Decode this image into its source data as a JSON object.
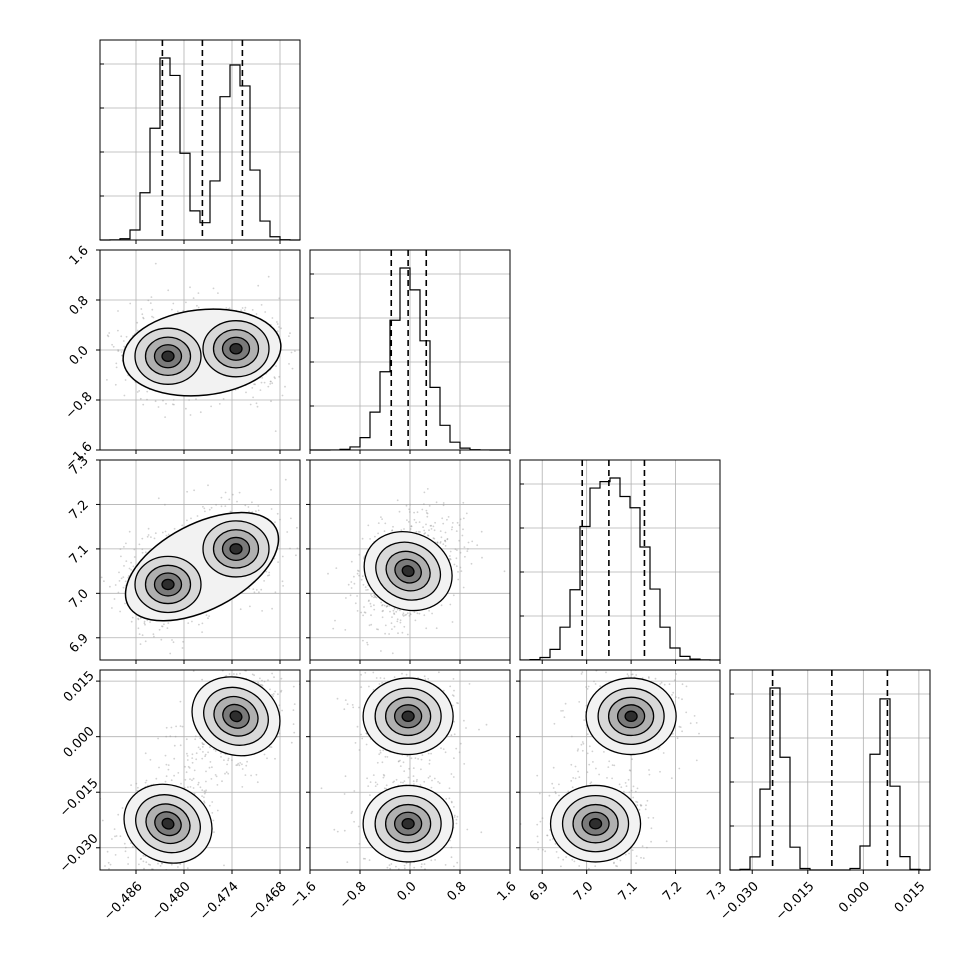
{
  "chart_data": {
    "type": "corner",
    "grid": true,
    "colors": {
      "line": "#000000",
      "grid": "#b0b0b0",
      "points": "#9a9a9a"
    },
    "parameters": [
      {
        "id": "p0",
        "ticks": [
          -0.486,
          -0.48,
          -0.474,
          -0.468
        ],
        "tick_labels": [
          "−0.486",
          "−0.480",
          "−0.474",
          "−0.468"
        ],
        "range": [
          -0.4905,
          -0.4655
        ],
        "quantiles": [
          -0.4827,
          -0.4777,
          -0.4727
        ],
        "modes": [
          {
            "mean": -0.482,
            "sd": 0.0017,
            "w": 0.5
          },
          {
            "mean": -0.4735,
            "sd": 0.0017,
            "w": 0.5
          }
        ]
      },
      {
        "id": "p1",
        "ticks": [
          -1.6,
          -0.8,
          0.0,
          0.8,
          1.6
        ],
        "tick_labels": [
          "−1.6",
          "−0.8",
          "0.0",
          "0.8",
          "1.6"
        ],
        "range": [
          -1.6,
          1.6
        ],
        "quantiles": [
          -0.3,
          -0.03,
          0.26
        ],
        "modes": [
          {
            "mean": -0.03,
            "sd": 0.3,
            "w": 1.0
          }
        ]
      },
      {
        "id": "p2",
        "ticks": [
          6.9,
          7.0,
          7.1,
          7.2,
          7.3
        ],
        "tick_labels": [
          "6.9",
          "7.0",
          "7.1",
          "7.2",
          "7.3"
        ],
        "range": [
          6.85,
          7.3
        ],
        "quantiles": [
          6.99,
          7.05,
          7.13
        ],
        "modes": [
          {
            "mean": 7.02,
            "sd": 0.04,
            "w": 0.5
          },
          {
            "mean": 7.1,
            "sd": 0.045,
            "w": 0.5
          }
        ]
      },
      {
        "id": "p3",
        "ticks": [
          -0.03,
          -0.015,
          0.0,
          0.015
        ],
        "tick_labels": [
          "−0.030",
          "−0.015",
          "0.000",
          "0.015"
        ],
        "range": [
          -0.036,
          0.018
        ],
        "quantiles": [
          -0.0245,
          -0.0085,
          0.0065
        ],
        "modes": [
          {
            "mean": -0.0235,
            "sd": 0.0025,
            "w": 0.5
          },
          {
            "mean": 0.0055,
            "sd": 0.0025,
            "w": 0.5
          }
        ]
      }
    ],
    "pair_peaks": [
      {
        "row": 1,
        "col": 0,
        "peaks": [
          {
            "x": -0.482,
            "y": -0.1
          },
          {
            "x": -0.4735,
            "y": 0.02
          }
        ]
      },
      {
        "row": 2,
        "col": 0,
        "peaks": [
          {
            "x": -0.482,
            "y": 7.02
          },
          {
            "x": -0.4735,
            "y": 7.1
          }
        ]
      },
      {
        "row": 2,
        "col": 1,
        "peaks": [
          {
            "x": -0.03,
            "y": 7.05
          }
        ]
      },
      {
        "row": 3,
        "col": 0,
        "peaks": [
          {
            "x": -0.482,
            "y": -0.0235
          },
          {
            "x": -0.4735,
            "y": 0.0055
          }
        ]
      },
      {
        "row": 3,
        "col": 1,
        "peaks": [
          {
            "x": -0.03,
            "y": 0.0055
          },
          {
            "x": -0.03,
            "y": -0.0235
          }
        ]
      },
      {
        "row": 3,
        "col": 2,
        "peaks": [
          {
            "x": 7.1,
            "y": 0.0055
          },
          {
            "x": 7.02,
            "y": -0.0235
          }
        ]
      }
    ]
  }
}
